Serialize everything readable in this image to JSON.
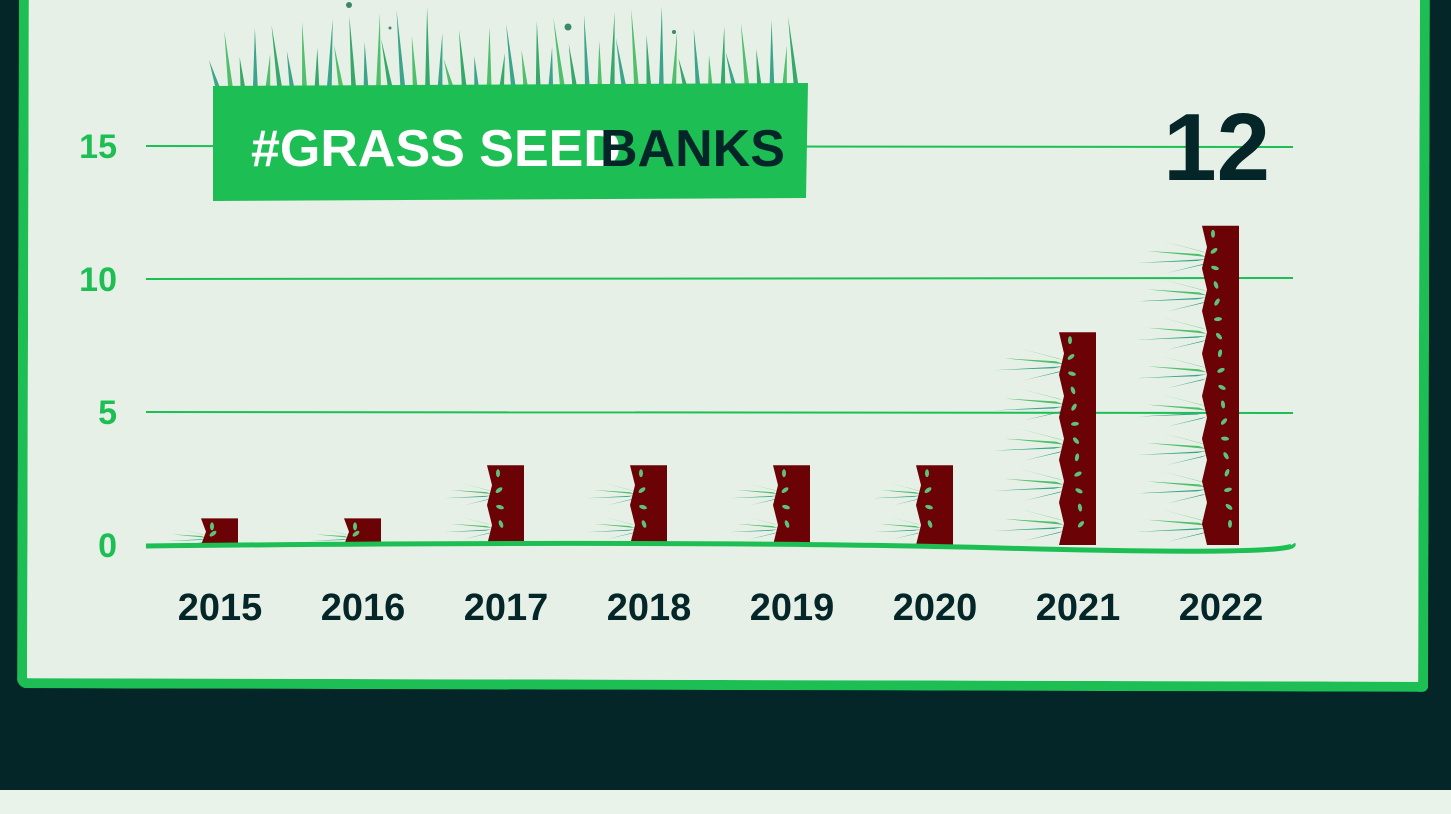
{
  "colors": {
    "frame": "#052628",
    "panel": "#e6f0e6",
    "accent_green": "#1dbf55",
    "soil": "#6b0205",
    "seed": "#5fc27a",
    "grass_light": "#4fbf6a",
    "grass_teal": "#3aa58a"
  },
  "title": {
    "prefix": "#GRASS SEED",
    "suffix": "BANKS"
  },
  "highlight_value": "12",
  "chart_data": {
    "type": "bar",
    "title": "#GRASS SEED BANKS",
    "categories": [
      "2015",
      "2016",
      "2017",
      "2018",
      "2019",
      "2020",
      "2021",
      "2022"
    ],
    "values": [
      1,
      1,
      3,
      3,
      3,
      3,
      8,
      12
    ],
    "yticks": [
      "0",
      "5",
      "10",
      "15"
    ],
    "ylim": [
      0,
      15
    ],
    "grid": true,
    "xlabel": "",
    "ylabel": ""
  }
}
